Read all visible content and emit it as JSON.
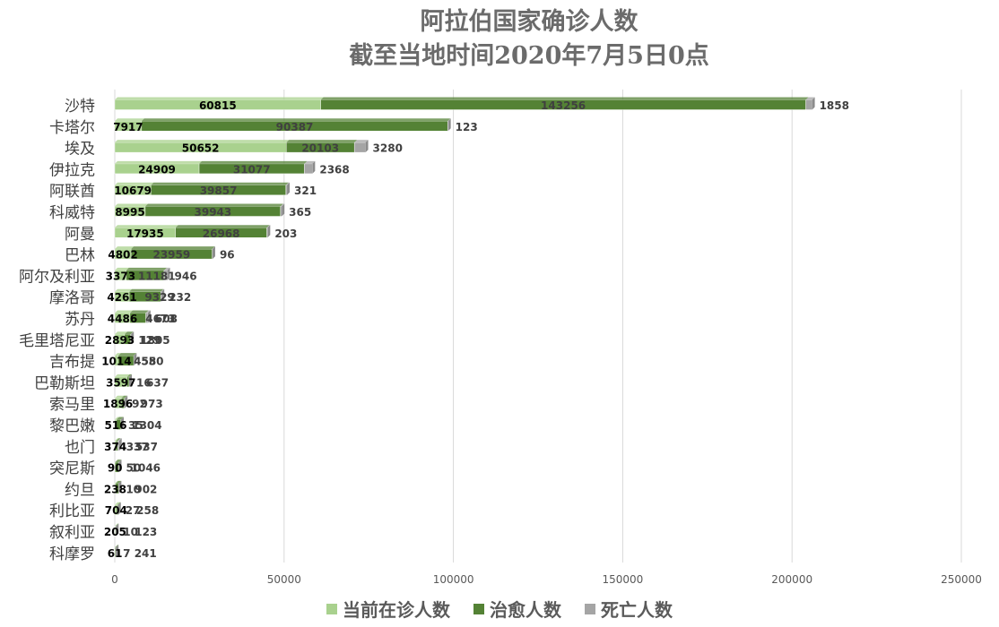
{
  "chart_data": {
    "type": "bar",
    "stacked": true,
    "orientation": "horizontal",
    "title_lines": [
      "阿拉伯国家确诊人数",
      "截至当地时间2020年7月5日0点"
    ],
    "categories": [
      "沙特",
      "卡塔尔",
      "埃及",
      "伊拉克",
      "阿联酋",
      "科威特",
      "阿曼",
      "巴林",
      "阿尔及利亚",
      "摩洛哥",
      "苏丹",
      "毛里塔尼亚",
      "吉布提",
      "巴勒斯坦",
      "索马里",
      "黎巴嫩",
      "也门",
      "突尼斯",
      "约旦",
      "利比亚",
      "叙利亚",
      "科摩罗"
    ],
    "series": [
      {
        "name": "当前在诊人数",
        "color": "#a9d18e",
        "values": [
          60815,
          7917,
          50652,
          24909,
          10679,
          8995,
          17935,
          4802,
          3373,
          4261,
          4486,
          2893,
          1014,
          3597,
          1896,
          516,
          374,
          90,
          238,
          704,
          205,
          61
        ]
      },
      {
        "name": "治愈人数",
        "color": "#548235",
        "values": [
          143256,
          90387,
          20103,
          31077,
          39857,
          39943,
          26968,
          23959,
          11181,
          9329,
          4673,
          1805,
          4580,
          637,
          973,
          1304,
          537,
          1046,
          902,
          258,
          123,
          241
        ]
      },
      {
        "name": "死亡人数",
        "color": "#a5a5a5",
        "values": [
          1858,
          123,
          3280,
          2368,
          321,
          365,
          203,
          96,
          946,
          232,
          608,
          129,
          55,
          16,
          92,
          35,
          337,
          50,
          10,
          27,
          10,
          7
        ]
      }
    ],
    "xlim": [
      0,
      250000
    ],
    "xticks": [
      0,
      50000,
      100000,
      150000,
      200000,
      250000
    ],
    "grid": "vertical",
    "legend_position": "bottom"
  }
}
